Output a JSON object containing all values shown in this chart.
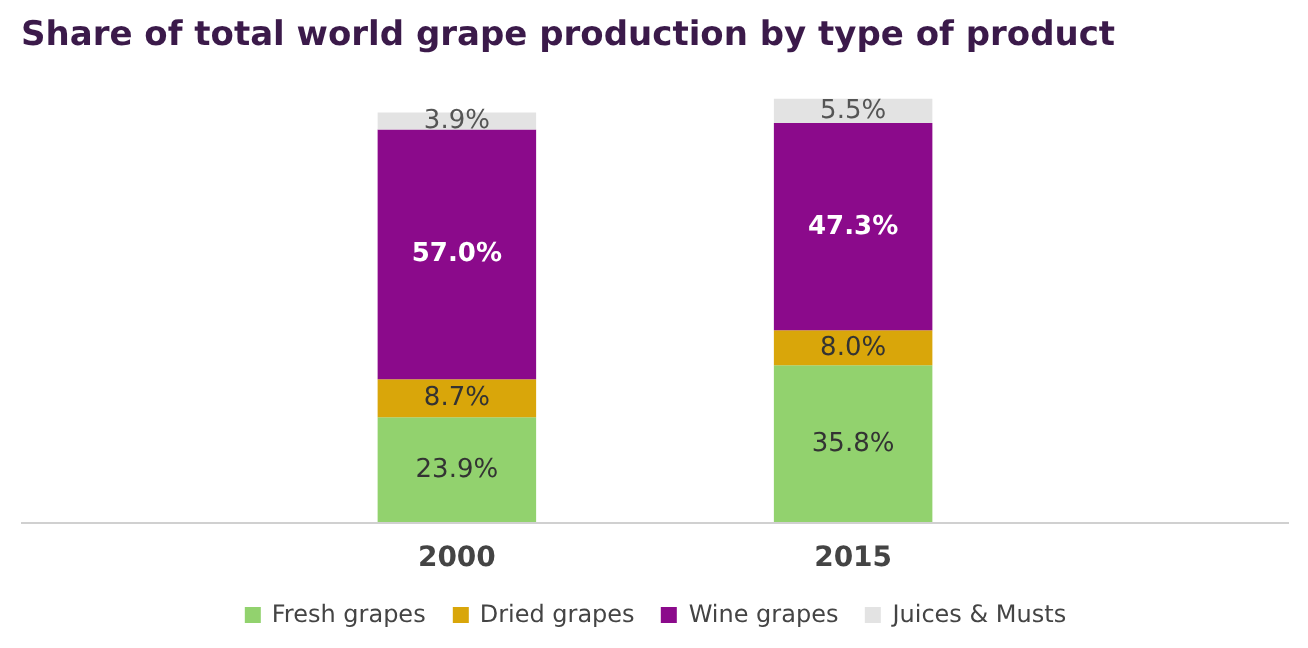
{
  "chart_data": {
    "type": "bar",
    "title": "Share of total world grape production by type of product",
    "categories": [
      "2000",
      "2015"
    ],
    "stacked": true,
    "legend": "bottom",
    "series": [
      {
        "name": "Fresh grapes",
        "color": "#92d26e",
        "values": [
          23.9,
          35.8
        ],
        "value_labels": [
          "23.9%",
          "35.8%"
        ]
      },
      {
        "name": "Dried grapes",
        "color": "#d9a60a",
        "values": [
          8.7,
          8.0
        ],
        "value_labels": [
          "8.7%",
          "8.0%"
        ]
      },
      {
        "name": "Wine grapes",
        "color": "#8b0a8b",
        "values": [
          57.0,
          47.3
        ],
        "value_labels": [
          "57.0%",
          "47.3%"
        ]
      },
      {
        "name": "Juices & Musts",
        "color": "#e3e3e3",
        "values": [
          3.9,
          5.5
        ],
        "value_labels": [
          "3.9%",
          "5.5%"
        ]
      }
    ]
  }
}
